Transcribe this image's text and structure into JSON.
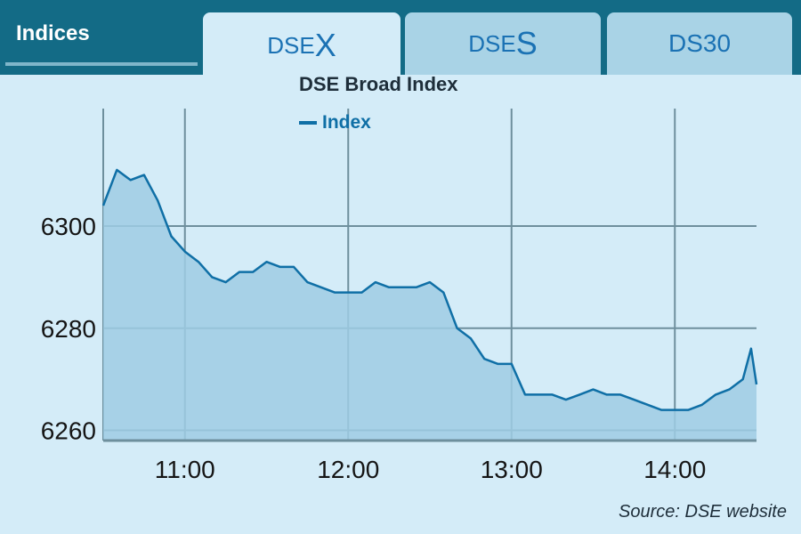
{
  "header": {
    "title": "Indices",
    "tabs": [
      {
        "prefix": "DSE",
        "suffix": "X",
        "active": true
      },
      {
        "prefix": "DSE",
        "suffix": "S",
        "active": false
      },
      {
        "prefix": "",
        "suffix": "DS30",
        "active": false
      }
    ]
  },
  "source": "Source: DSE website",
  "colors": {
    "header": "#136b86",
    "background": "#d4ecf8",
    "line": "#0f6fa6",
    "area": "#9fcde4",
    "grid": "#6e8f9d"
  },
  "chart_data": {
    "type": "area",
    "title": "DSE Broad Index",
    "legend": [
      "Index"
    ],
    "legend_position": "top",
    "grid": true,
    "xlabel": "",
    "ylabel": "",
    "xlim": [
      "10:30",
      "14:30"
    ],
    "ylim": [
      6258,
      6323
    ],
    "x_ticks": [
      "11:00",
      "12:00",
      "13:00",
      "14:00"
    ],
    "y_ticks": [
      6260,
      6280,
      6300
    ],
    "series": [
      {
        "name": "Index",
        "x": [
          "10:30",
          "10:35",
          "10:40",
          "10:45",
          "10:50",
          "10:55",
          "11:00",
          "11:05",
          "11:10",
          "11:15",
          "11:20",
          "11:25",
          "11:30",
          "11:35",
          "11:40",
          "11:45",
          "11:50",
          "11:55",
          "12:00",
          "12:05",
          "12:10",
          "12:15",
          "12:20",
          "12:25",
          "12:30",
          "12:35",
          "12:40",
          "12:45",
          "12:50",
          "12:55",
          "13:00",
          "13:05",
          "13:10",
          "13:15",
          "13:20",
          "13:25",
          "13:30",
          "13:35",
          "13:40",
          "13:45",
          "13:50",
          "13:55",
          "14:00",
          "14:05",
          "14:10",
          "14:15",
          "14:20",
          "14:25",
          "14:28",
          "14:30"
        ],
        "values": [
          6304,
          6311,
          6309,
          6310,
          6305,
          6298,
          6295,
          6293,
          6290,
          6289,
          6291,
          6291,
          6293,
          6292,
          6292,
          6289,
          6288,
          6287,
          6287,
          6287,
          6289,
          6288,
          6288,
          6288,
          6289,
          6287,
          6280,
          6278,
          6274,
          6273,
          6273,
          6267,
          6267,
          6267,
          6266,
          6267,
          6268,
          6267,
          6267,
          6266,
          6265,
          6264,
          6264,
          6264,
          6265,
          6267,
          6268,
          6270,
          6276,
          6269
        ]
      }
    ]
  }
}
